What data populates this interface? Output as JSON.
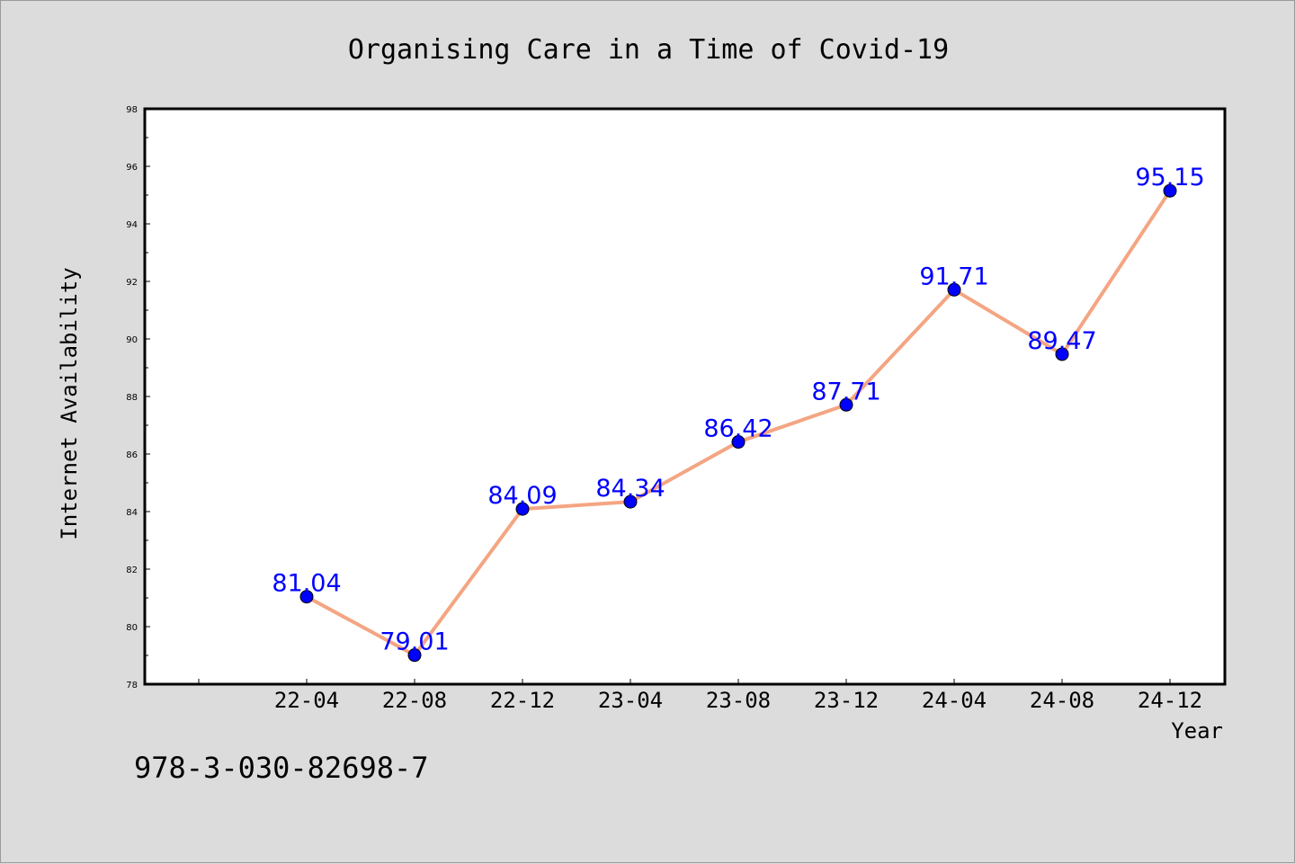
{
  "footer_text": "978-3-030-82698-7",
  "chart_data": {
    "type": "line",
    "title": "Organising Care in a Time of Covid-19",
    "xlabel": "Year",
    "ylabel": "Internet Availability",
    "categories": [
      "22-04",
      "22-08",
      "22-12",
      "23-04",
      "23-08",
      "23-12",
      "24-04",
      "24-08",
      "24-12"
    ],
    "series": [
      {
        "values": [
          81.04,
          79.01,
          84.09,
          84.34,
          86.42,
          87.71,
          91.71,
          89.47,
          95.15
        ]
      }
    ],
    "data_labels": [
      "81.04",
      "79.01",
      "84.09",
      "84.34",
      "86.42",
      "87.71",
      "91.71",
      "89.47",
      "95.15"
    ],
    "ylim": [
      78,
      98
    ],
    "yticks": [
      "78",
      "80",
      "82",
      "84",
      "86",
      "88",
      "90",
      "92",
      "94",
      "96",
      "98"
    ],
    "grid": false,
    "line_color": "#f4a582",
    "marker_color": "#0000ff",
    "label_color": "#0000ff",
    "background": "#dcdcdc",
    "plot_background": "#ffffff"
  }
}
